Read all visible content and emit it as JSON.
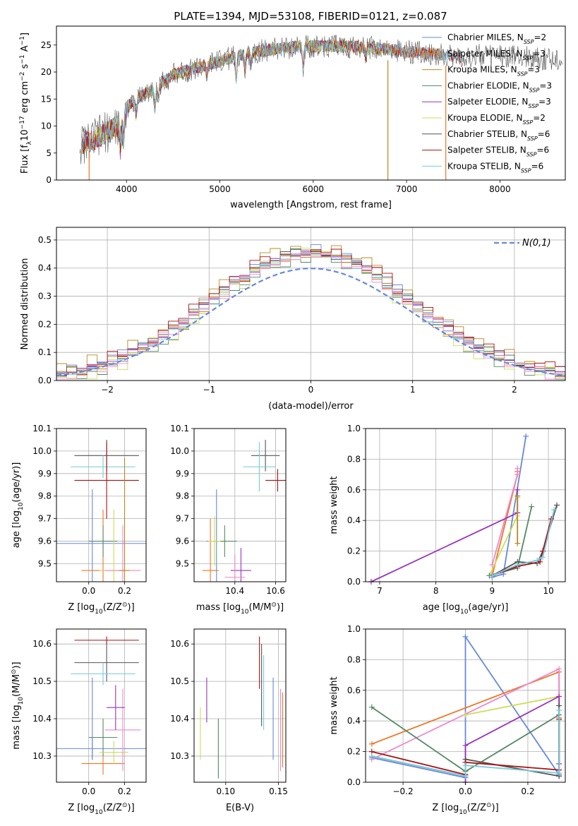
{
  "figure_title": "PLATE=1394, MJD=53108, FIBERID=0121, z=0.087",
  "colors": {
    "axis": "#000000",
    "grid": "#b0b0b0",
    "series": [
      "#6688dd",
      "#ee7722",
      "#bb8822",
      "#558866",
      "#9933bb",
      "#ccdd55",
      "#555555",
      "#aa1111",
      "#77ccdd",
      "#ee88cc"
    ]
  },
  "chart_data": [
    {
      "id": "spectrum",
      "type": "line",
      "title": "PLATE=1394, MJD=53108, FIBERID=0121, z=0.087",
      "xlabel": "wavelength [Angstrom, rest frame]",
      "ylabel_parts": [
        "Flux [f",
        "λ",
        "10",
        "−17",
        " erg cm",
        "−2",
        " s",
        "−1",
        " A",
        "−1",
        "]"
      ],
      "xlim": [
        3250,
        8700
      ],
      "ylim": [
        0,
        28.5
      ],
      "xticks": [
        4000,
        5000,
        6000,
        7000,
        8000
      ],
      "yticks": [
        0,
        5,
        10,
        15,
        20,
        25
      ],
      "grid": false,
      "legend_position": "upper right",
      "legend": [
        {
          "name": "Chabrier MILES, N",
          "sub": "SSP",
          "tail": "=2"
        },
        {
          "name": "Salpeter MILES, N",
          "sub": "SSP",
          "tail": "=3"
        },
        {
          "name": "Kroupa MILES, N",
          "sub": "SSP",
          "tail": "=3"
        },
        {
          "name": "Chabrier ELODIE, N",
          "sub": "SSP",
          "tail": "=3"
        },
        {
          "name": "Salpeter ELODIE, N",
          "sub": "SSP",
          "tail": "=3"
        },
        {
          "name": "Kroupa ELODIE, N",
          "sub": "SSP",
          "tail": "=2"
        },
        {
          "name": "Chabrier STELIB, N",
          "sub": "SSP",
          "tail": "=6"
        },
        {
          "name": "Salpeter STELIB, N",
          "sub": "SSP",
          "tail": "=6"
        },
        {
          "name": "Kroupa STELIB, N",
          "sub": "SSP",
          "tail": "=6"
        }
      ],
      "continuum": {
        "x": [
          3500,
          3650,
          3850,
          3950,
          4000,
          4100,
          4300,
          4500,
          4800,
          5000,
          5200,
          5400,
          5600,
          5800,
          6000,
          6200,
          6400,
          6600,
          6800,
          7000,
          7200,
          7400,
          7600,
          7800,
          8000,
          8200,
          8400
        ],
        "y": [
          6.5,
          7.5,
          9.5,
          10.5,
          13.5,
          15.0,
          17.0,
          19.5,
          21.0,
          22.0,
          23.0,
          23.8,
          24.3,
          24.6,
          24.8,
          24.8,
          24.7,
          24.5,
          24.2,
          23.8,
          23.5,
          23.2,
          23.0,
          23.0,
          23.0,
          22.8,
          22.5
        ]
      },
      "absorption_features": [
        {
          "x": 3934,
          "depth": 4.5
        },
        {
          "x": 3969,
          "depth": 4.0
        },
        {
          "x": 4102,
          "depth": 3.0
        },
        {
          "x": 4305,
          "depth": 4.0
        },
        {
          "x": 4341,
          "depth": 2.5
        },
        {
          "x": 4861,
          "depth": 2.5
        },
        {
          "x": 5175,
          "depth": 4.0
        },
        {
          "x": 5270,
          "depth": 2.5
        },
        {
          "x": 5335,
          "depth": 2.0
        },
        {
          "x": 5893,
          "depth": 4.0
        },
        {
          "x": 6563,
          "depth": 2.0
        },
        {
          "x": 7590,
          "depth": 1.5
        }
      ],
      "spikes": [
        {
          "x": 6800,
          "color_index": 2
        },
        {
          "x": 7420,
          "color_index": 1
        },
        {
          "x": 3600,
          "color_index": 1
        }
      ],
      "stelib_end": 7620,
      "elodie_end": 6800
    },
    {
      "id": "residuals",
      "type": "histogram",
      "xlabel": "(data-model)/error",
      "ylabel": "Normed distribution",
      "xlim": [
        -2.5,
        2.5
      ],
      "ylim": [
        0,
        0.545
      ],
      "xticks": [
        -2,
        -1,
        0,
        1,
        2
      ],
      "xtick_labels": [
        "−2",
        "−1",
        "0",
        "1",
        "2"
      ],
      "yticks": [
        0,
        0.1,
        0.2,
        0.3,
        0.4,
        0.5
      ],
      "ytick_labels": [
        "0.0",
        "0.1",
        "0.2",
        "0.3",
        "0.4",
        "0.5"
      ],
      "grid": true,
      "bin_width": 0.1,
      "series_count": 10,
      "jitter": [
        0.02,
        -0.015,
        0.03,
        -0.025,
        0.01,
        -0.03,
        0.015,
        0.025,
        -0.01,
        -0.02
      ],
      "normal_curve": {
        "label": "N(0,1)",
        "mean": 0,
        "sigma": 1,
        "style": "dashed"
      },
      "legend_position": "upper right"
    },
    {
      "id": "age_vs_Z",
      "type": "errorbar",
      "xlabel_parts": [
        "Z [log",
        "10",
        "(Z/Z",
        "⊙",
        ")]"
      ],
      "ylabel_parts": [
        "age  [log",
        "10",
        "(age/yr)]"
      ],
      "xlim": [
        -0.18,
        0.32
      ],
      "ylim": [
        9.42,
        10.1
      ],
      "xticks": [
        0.0,
        0.2
      ],
      "xtick_labels": [
        "0.0",
        "0.2"
      ],
      "yticks": [
        9.5,
        9.6,
        9.7,
        9.8,
        9.9,
        10.0,
        10.1
      ],
      "ytick_labels": [
        "9.5",
        "9.6",
        "9.7",
        "9.8",
        "9.9",
        "10.0",
        "10.1"
      ],
      "grid": true,
      "points": [
        {
          "c": 0,
          "x": 0.02,
          "y": 9.59,
          "xe": 0.3,
          "ye": 0.24
        },
        {
          "c": 1,
          "x": 0.08,
          "y": 9.47,
          "xe": 0.12,
          "ye": 0.27
        },
        {
          "c": 3,
          "x": 0.08,
          "y": 9.6,
          "xe": 0.08,
          "ye": 0.07
        },
        {
          "c": 5,
          "x": 0.14,
          "y": 9.47,
          "xe": 0.08,
          "ye": 0.27
        },
        {
          "c": 9,
          "x": 0.19,
          "y": 9.47,
          "xe": 0.1,
          "ye": 0.2
        },
        {
          "c": 6,
          "x": 0.1,
          "y": 9.98,
          "xe": 0.18,
          "ye": 0.07
        },
        {
          "c": 8,
          "x": 0.08,
          "y": 9.93,
          "xe": 0.18,
          "ye": 0.05
        },
        {
          "c": 7,
          "x": 0.1,
          "y": 9.87,
          "xe": 0.18,
          "ye": 0.17
        },
        {
          "c": 2,
          "x": 0.2,
          "y": 9.47,
          "xe": 0.03,
          "ye": 0.5
        }
      ]
    },
    {
      "id": "age_vs_mass",
      "type": "errorbar",
      "xlabel_parts": [
        "mass [log",
        "10",
        "(M/M",
        "⊙",
        ")]"
      ],
      "xlim": [
        10.2,
        10.65
      ],
      "ylim": [
        9.42,
        10.1
      ],
      "xticks": [
        10.4,
        10.6
      ],
      "xtick_labels": [
        "10.4",
        "10.6"
      ],
      "yticks": [
        9.5,
        9.6,
        9.7,
        9.8,
        9.9,
        10.0,
        10.1
      ],
      "ytick_labels": [
        "9.5",
        "9.6",
        "9.7",
        "9.8",
        "9.9",
        "10.0",
        "10.1"
      ],
      "grid": true,
      "points": [
        {
          "c": 0,
          "x": 10.31,
          "y": 9.6,
          "xe": 0.05,
          "ye": 0.23
        },
        {
          "c": 3,
          "x": 10.35,
          "y": 9.6,
          "xe": 0.06,
          "ye": 0.07
        },
        {
          "c": 1,
          "x": 10.28,
          "y": 9.47,
          "xe": 0.04,
          "ye": 0.23
        },
        {
          "c": 5,
          "x": 10.3,
          "y": 9.6,
          "xe": 0.03,
          "ye": 0.11
        },
        {
          "c": 4,
          "x": 10.43,
          "y": 9.47,
          "xe": 0.05,
          "ye": 0.1
        },
        {
          "c": 9,
          "x": 10.4,
          "y": 9.44,
          "xe": 0.05,
          "ye": 0.1
        },
        {
          "c": 6,
          "x": 10.55,
          "y": 9.98,
          "xe": 0.07,
          "ye": 0.07
        },
        {
          "c": 8,
          "x": 10.52,
          "y": 9.93,
          "xe": 0.08,
          "ye": 0.11
        },
        {
          "c": 7,
          "x": 10.61,
          "y": 9.87,
          "xe": 0.06,
          "ye": 0.05
        }
      ]
    },
    {
      "id": "weight_vs_age",
      "type": "line",
      "xlabel_parts": [
        "age  [log",
        "10",
        "(age/yr)]"
      ],
      "ylabel": "mass weight",
      "xlim": [
        6.75,
        10.3
      ],
      "ylim": [
        0,
        1.0
      ],
      "xticks": [
        7,
        8,
        9,
        10
      ],
      "yticks": [
        0,
        0.2,
        0.4,
        0.6,
        0.8,
        1.0
      ],
      "ytick_labels": [
        "0.0",
        "0.2",
        "0.4",
        "0.6",
        "0.8",
        "1.0"
      ],
      "grid": true,
      "series": [
        {
          "c": 0,
          "x": [
            9.0,
            9.2,
            9.6
          ],
          "y": [
            0.03,
            0.05,
            0.95
          ]
        },
        {
          "c": 1,
          "x": [
            9.0,
            9.45,
            9.45
          ],
          "y": [
            0.04,
            0.7,
            0.72
          ]
        },
        {
          "c": 9,
          "x": [
            9.0,
            9.45,
            9.45
          ],
          "y": [
            0.11,
            0.7,
            0.74
          ]
        },
        {
          "c": 5,
          "x": [
            8.95,
            9.45,
            9.45
          ],
          "y": [
            0.04,
            0.43,
            0.55
          ]
        },
        {
          "c": 4,
          "x": [
            6.85,
            9.45,
            9.45
          ],
          "y": [
            0.0,
            0.45,
            0.6
          ]
        },
        {
          "c": 3,
          "x": [
            8.95,
            9.45,
            9.7
          ],
          "y": [
            0.04,
            0.09,
            0.49
          ]
        },
        {
          "c": 6,
          "x": [
            9.0,
            9.45,
            9.8,
            9.9,
            10.15
          ],
          "y": [
            0.04,
            0.13,
            0.12,
            0.2,
            0.5
          ]
        },
        {
          "c": 7,
          "x": [
            9.0,
            9.45,
            9.85,
            9.9,
            10.05
          ],
          "y": [
            0.04,
            0.1,
            0.13,
            0.2,
            0.41
          ]
        },
        {
          "c": 8,
          "x": [
            9.0,
            9.45,
            9.8,
            9.9,
            10.1
          ],
          "y": [
            0.04,
            0.11,
            0.14,
            0.16,
            0.47
          ]
        },
        {
          "c": 2,
          "x": [
            9.45,
            9.45
          ],
          "y": [
            0.25,
            0.56
          ]
        }
      ]
    },
    {
      "id": "mass_vs_Z",
      "type": "errorbar",
      "xlabel_parts": [
        "Z [log",
        "10",
        "(Z/Z",
        "⊙",
        ")]"
      ],
      "ylabel_parts": [
        "mass [log",
        "10",
        "(M/M",
        "⊙",
        ")]"
      ],
      "xlim": [
        -0.18,
        0.32
      ],
      "ylim": [
        10.23,
        10.64
      ],
      "xticks": [
        0.0,
        0.2
      ],
      "xtick_labels": [
        "0.0",
        "0.2"
      ],
      "yticks": [
        10.3,
        10.4,
        10.5,
        10.6
      ],
      "ytick_labels": [
        "10.3",
        "10.4",
        "10.5",
        "10.6"
      ],
      "grid": true,
      "points": [
        {
          "c": 0,
          "x": 0.02,
          "y": 10.32,
          "xe": 0.3,
          "ye": 0.03
        },
        {
          "c": 1,
          "x": 0.08,
          "y": 10.28,
          "xe": 0.12,
          "ye": 0.03
        },
        {
          "c": 3,
          "x": 0.08,
          "y": 10.35,
          "xe": 0.08,
          "ye": 0.05
        },
        {
          "c": 5,
          "x": 0.14,
          "y": 10.31,
          "xe": 0.08,
          "ye": 0.03
        },
        {
          "c": 9,
          "x": 0.19,
          "y": 10.37,
          "xe": 0.1,
          "ye": 0.11
        },
        {
          "c": 4,
          "x": 0.15,
          "y": 10.43,
          "xe": 0.05,
          "ye": 0.06
        },
        {
          "c": 6,
          "x": 0.1,
          "y": 10.55,
          "xe": 0.18,
          "ye": 0.05
        },
        {
          "c": 8,
          "x": 0.08,
          "y": 10.52,
          "xe": 0.18,
          "ye": 0.03
        },
        {
          "c": 7,
          "x": 0.1,
          "y": 10.61,
          "xe": 0.18,
          "ye": 0.01
        },
        {
          "c": 0,
          "x": 0.02,
          "y": 10.4,
          "xe": 0.0,
          "ye": 0.11
        }
      ]
    },
    {
      "id": "mass_vs_ebv",
      "type": "errorbar",
      "xlabel": "E(B-V)",
      "xlim": [
        0.07,
        0.157
      ],
      "ylim": [
        10.23,
        10.64
      ],
      "xticks": [
        0.1,
        0.15
      ],
      "xtick_labels": [
        "0.10",
        "0.15"
      ],
      "yticks": [
        10.3,
        10.4,
        10.5,
        10.6
      ],
      "ytick_labels": [
        "10.3",
        "10.4",
        "10.5",
        "10.6"
      ],
      "grid": true,
      "points": [
        {
          "c": 5,
          "x": 0.076,
          "y": 10.36,
          "ye": 0.07
        },
        {
          "c": 4,
          "x": 0.082,
          "y": 10.45,
          "ye": 0.06
        },
        {
          "c": 3,
          "x": 0.093,
          "y": 10.32,
          "ye": 0.08
        },
        {
          "c": 7,
          "x": 0.132,
          "y": 10.55,
          "ye": 0.07
        },
        {
          "c": 6,
          "x": 0.134,
          "y": 10.49,
          "ye": 0.11
        },
        {
          "c": 8,
          "x": 0.136,
          "y": 10.47,
          "ye": 0.1
        },
        {
          "c": 0,
          "x": 0.145,
          "y": 10.4,
          "ye": 0.11
        },
        {
          "c": 9,
          "x": 0.152,
          "y": 10.37,
          "ye": 0.11
        },
        {
          "c": 1,
          "x": 0.154,
          "y": 10.37,
          "ye": 0.1
        }
      ]
    },
    {
      "id": "weight_vs_Z",
      "type": "line",
      "xlabel_parts": [
        "Z [log",
        "10",
        "(Z/Z",
        "⊙",
        ")]"
      ],
      "ylabel": "mass weight",
      "xlim": [
        -0.32,
        0.32
      ],
      "ylim": [
        0,
        1.0
      ],
      "xticks": [
        -0.2,
        0.0,
        0.2
      ],
      "xtick_labels": [
        "−0.2",
        "0.0",
        "0.2"
      ],
      "yticks": [
        0,
        0.2,
        0.4,
        0.6,
        0.8,
        1.0
      ],
      "ytick_labels": [
        "0.0",
        "0.2",
        "0.4",
        "0.6",
        "0.8",
        "1.0"
      ],
      "grid": true,
      "series": [
        {
          "c": 0,
          "x": [
            -0.3,
            0.0,
            0.0,
            0.3
          ],
          "y": [
            0.16,
            0.03,
            0.95,
            0.05
          ]
        },
        {
          "c": 1,
          "x": [
            -0.3,
            0.3,
            0.3
          ],
          "y": [
            0.25,
            0.72,
            0.42
          ]
        },
        {
          "c": 9,
          "x": [
            -0.3,
            0.3,
            0.3
          ],
          "y": [
            0.15,
            0.74,
            0.12
          ]
        },
        {
          "c": 5,
          "x": [
            0.0,
            0.3,
            0.3
          ],
          "y": [
            0.44,
            0.56,
            0.12
          ]
        },
        {
          "c": 4,
          "x": [
            0.0,
            0.0,
            0.3,
            0.3
          ],
          "y": [
            0.0,
            0.24,
            0.56,
            0.12
          ]
        },
        {
          "c": 3,
          "x": [
            -0.3,
            0.0,
            0.3,
            0.3
          ],
          "y": [
            0.49,
            0.07,
            0.44,
            0.04
          ]
        },
        {
          "c": 6,
          "x": [
            -0.3,
            0.0,
            0.0,
            0.3,
            0.3
          ],
          "y": [
            0.17,
            0.04,
            0.15,
            0.04,
            0.5
          ]
        },
        {
          "c": 7,
          "x": [
            -0.3,
            0.0,
            0.0,
            0.3,
            0.3
          ],
          "y": [
            0.2,
            0.05,
            0.13,
            0.08,
            0.41
          ]
        },
        {
          "c": 8,
          "x": [
            -0.3,
            0.0,
            0.0,
            0.3,
            0.3
          ],
          "y": [
            0.17,
            0.04,
            0.11,
            0.06,
            0.47
          ]
        }
      ]
    }
  ]
}
